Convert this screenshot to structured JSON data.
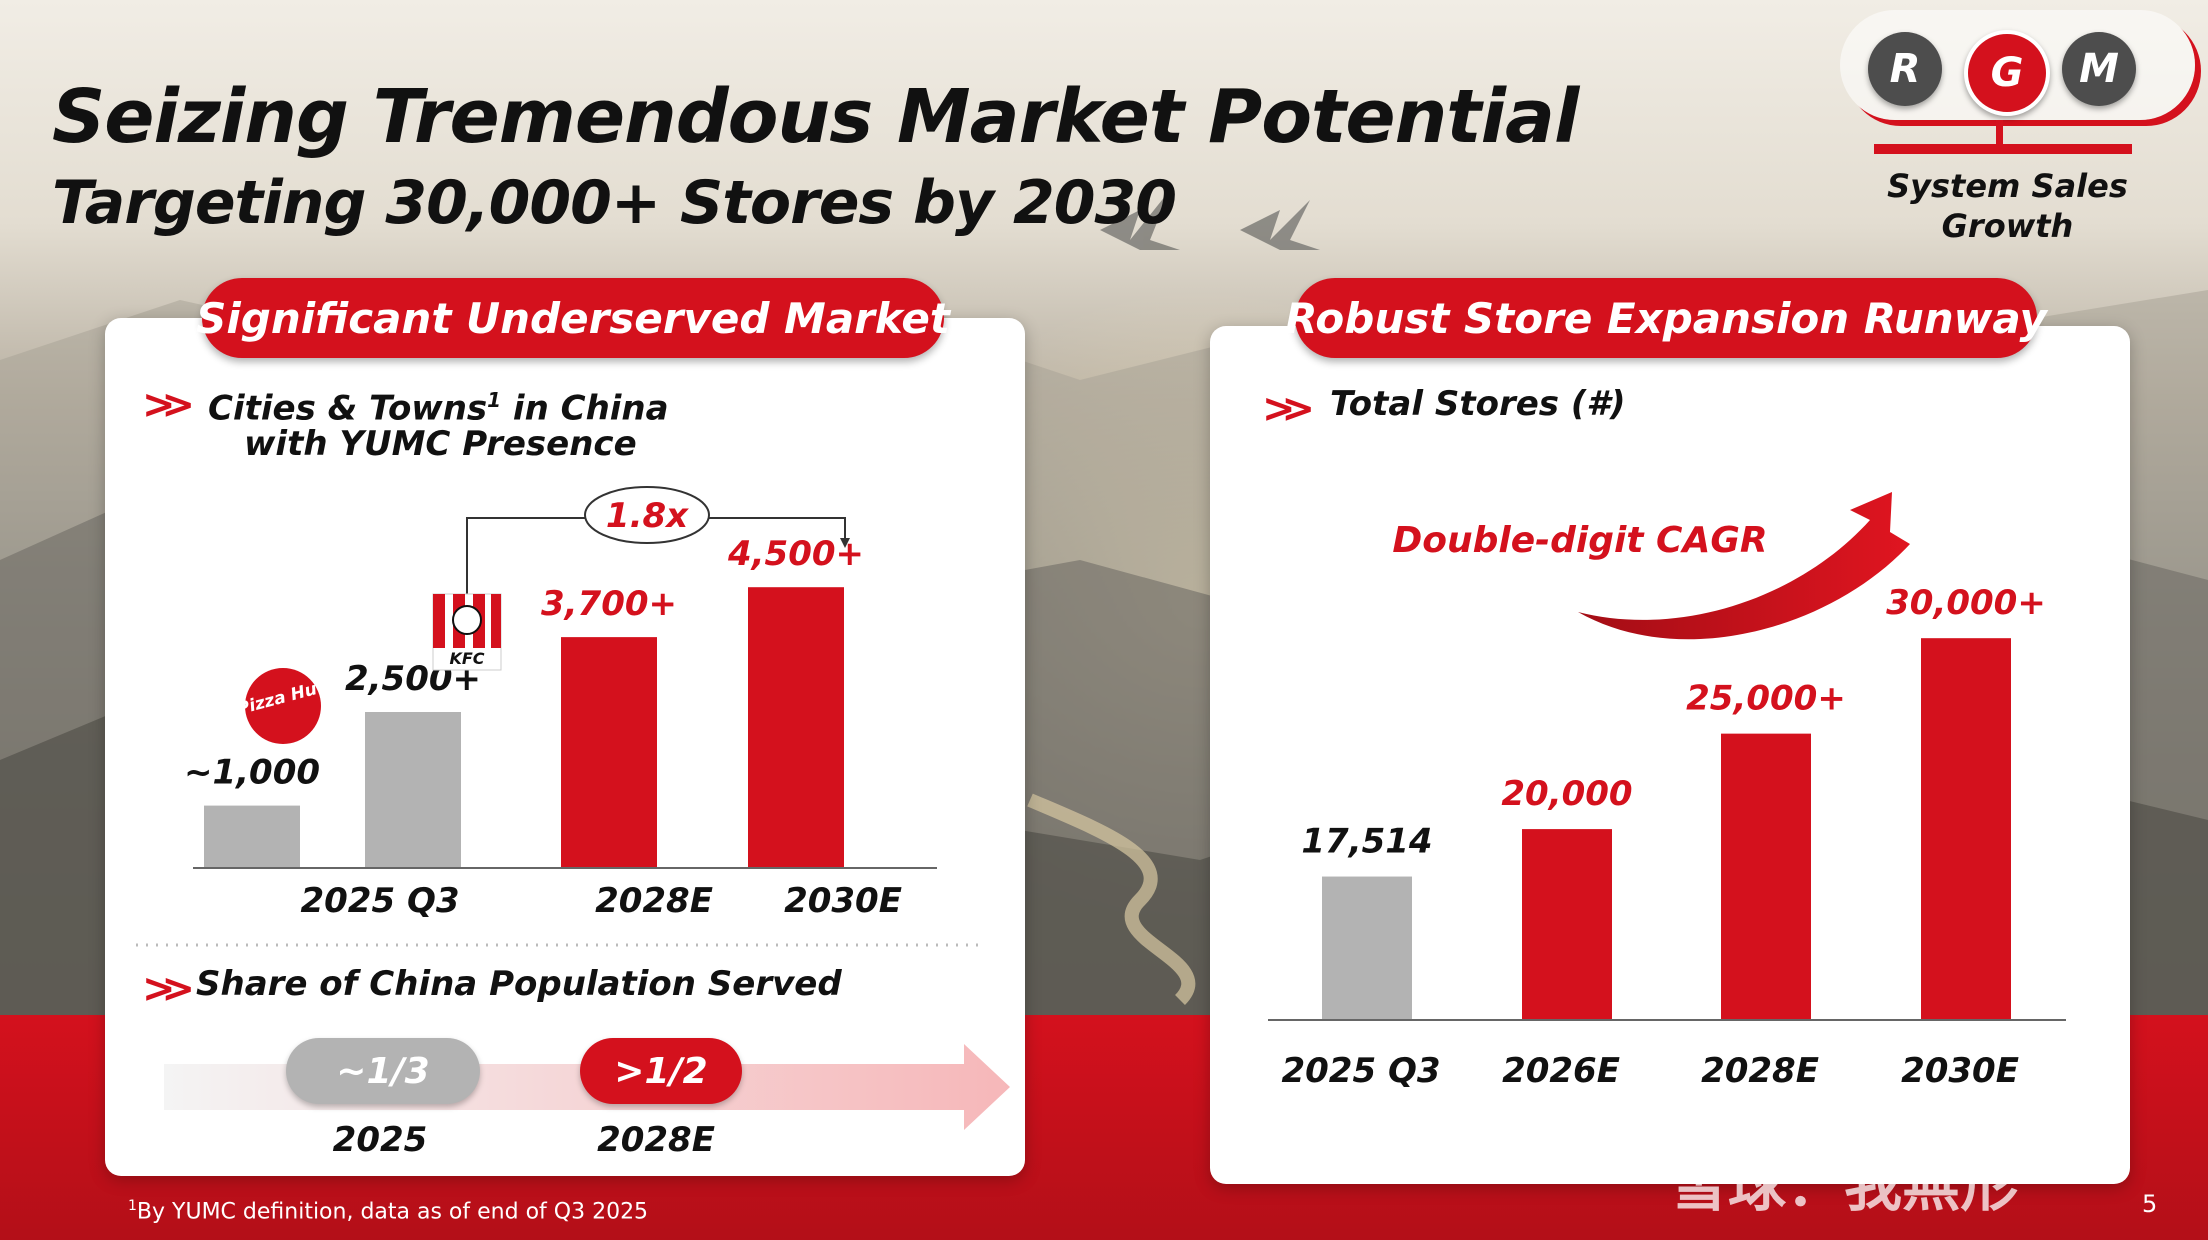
{
  "header": {
    "title": "Seizing Tremendous Market Potential",
    "subtitle": "Targeting 30,000+ Stores by 2030"
  },
  "rgm": {
    "letters": [
      "R",
      "G",
      "M"
    ],
    "label_line1": "System Sales",
    "label_line2": "Growth",
    "accent_color": "#d4111d",
    "inactive_color": "#4d4d4d"
  },
  "left_panel": {
    "heading": "Significant Underserved Market",
    "section1_line1": "Cities & Towns",
    "section1_sup": "1",
    "section1_line1_end": " in China",
    "section1_line2": "with YUMC Presence",
    "growth_multiple": "1.8x",
    "brand_icons": [
      "pizza-hut-logo",
      "kfc-logo"
    ],
    "pizza_hut_logo_text": "Pizza Hut",
    "kfc_logo_text": "KFC",
    "section2_title": "Share of China Population Served",
    "population": {
      "values": [
        "~1/3",
        ">1/2"
      ],
      "years": [
        "2025",
        "2028E"
      ]
    }
  },
  "right_panel": {
    "heading": "Robust Store Expansion Runway",
    "section_title": "Total Stores (#)",
    "cagr_label": "Double-digit CAGR"
  },
  "chart_data": [
    {
      "type": "bar",
      "title": "Cities & Towns in China with YUMC Presence",
      "bars": [
        {
          "brand": "Pizza Hut",
          "value": 1000,
          "label": "~1,000",
          "color": "#b3b3b3",
          "group": "2025 Q3"
        },
        {
          "brand": "KFC",
          "value": 2500,
          "label": "2,500+",
          "color": "#b3b3b3",
          "group": "2025 Q3"
        },
        {
          "value": 3700,
          "label": "3,700+",
          "color": "#d4111d",
          "group": "2028E"
        },
        {
          "value": 4500,
          "label": "4,500+",
          "color": "#d4111d",
          "group": "2030E"
        }
      ],
      "categories": [
        "2025 Q3",
        "2028E",
        "2030E"
      ],
      "ylim": [
        0,
        5000
      ],
      "annotation": "1.8x",
      "grid": false
    },
    {
      "type": "bar",
      "title": "Total Stores (#)",
      "categories": [
        "2025 Q3",
        "2026E",
        "2028E",
        "2030E"
      ],
      "values": [
        17514,
        20000,
        25000,
        30000
      ],
      "labels": [
        "17,514",
        "20,000",
        "25,000+",
        "30,000+"
      ],
      "colors": [
        "#b3b3b3",
        "#d4111d",
        "#d4111d",
        "#d4111d"
      ],
      "ylim": [
        0,
        32000
      ],
      "annotation": "Double-digit CAGR",
      "grid": false
    }
  ],
  "footer": {
    "footnote_sup": "1",
    "footnote": "By YUMC definition, data as of end of Q3 2025",
    "page_number": "5",
    "watermark": "雪球：我無形"
  }
}
